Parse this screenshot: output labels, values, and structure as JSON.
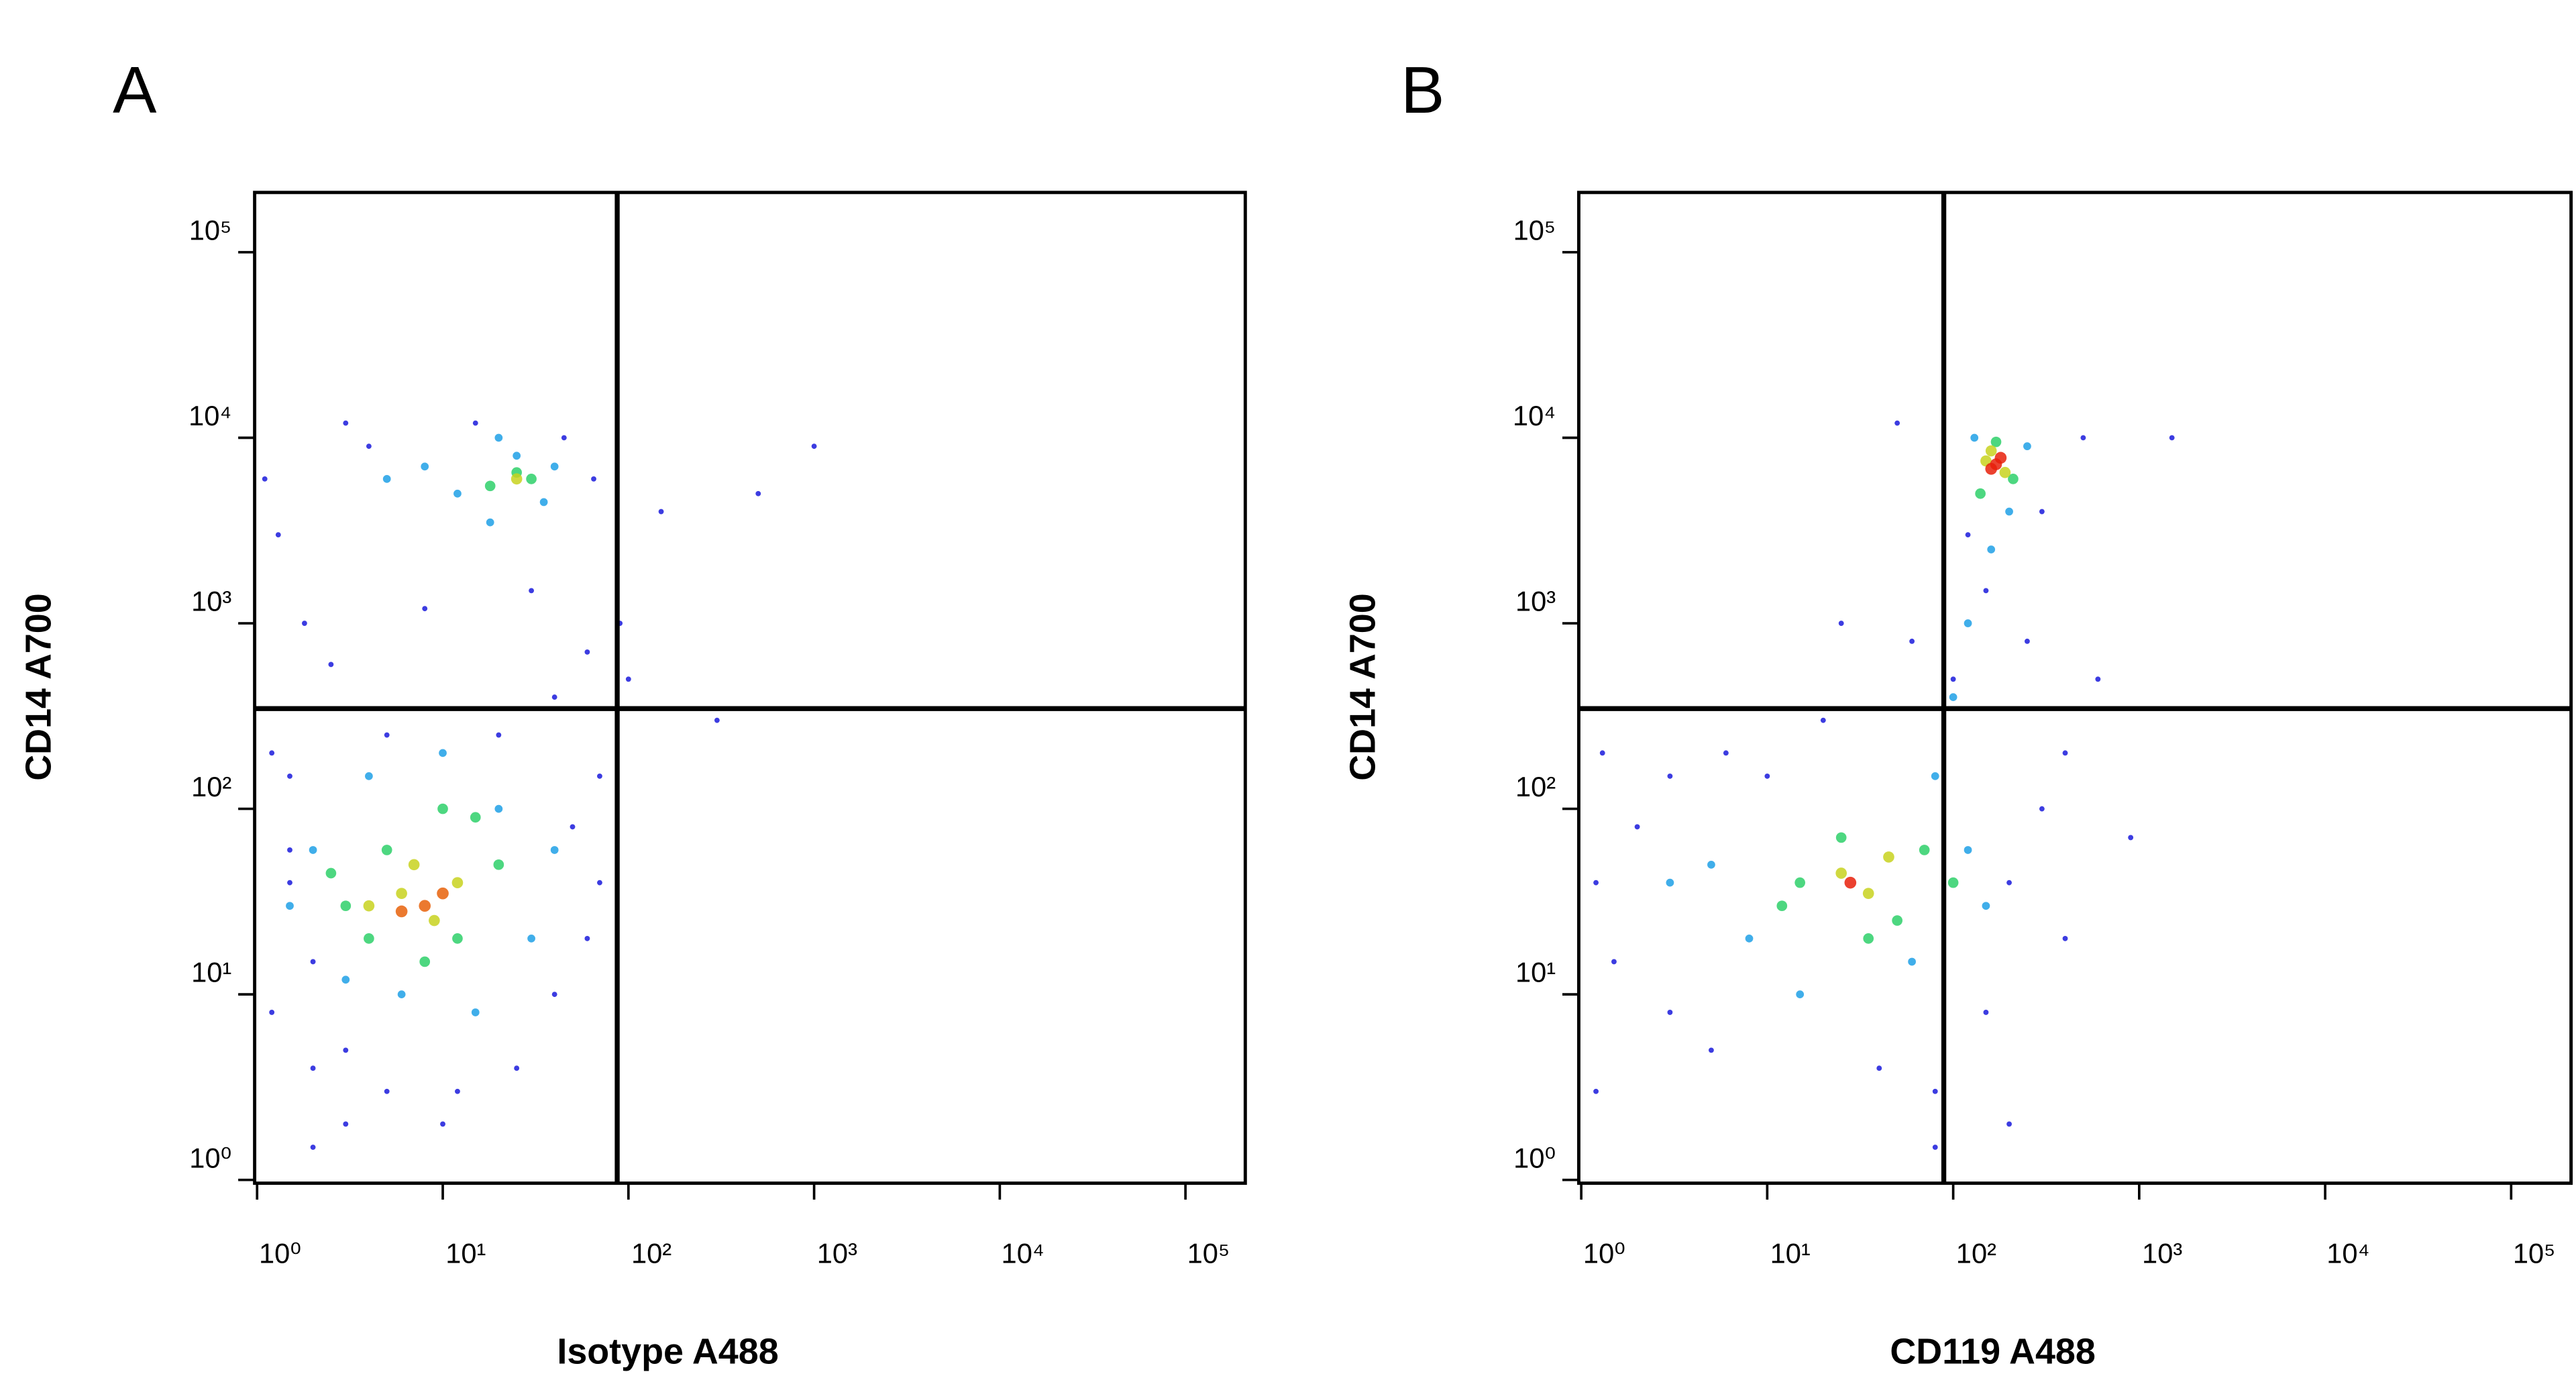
{
  "chart_data": [
    {
      "type": "scatter",
      "panel": "A",
      "x_label": "Isotype A488",
      "y_label": "CD14 A700",
      "xscale": "log",
      "yscale": "log",
      "xlim": [
        0.97,
        210000
      ],
      "ylim": [
        0.96,
        210000
      ],
      "xticks": [
        {
          "value": 1,
          "label": "10⁰"
        },
        {
          "value": 10,
          "label": "10¹"
        },
        {
          "value": 100,
          "label": "10²"
        },
        {
          "value": 1000,
          "label": "10³"
        },
        {
          "value": 10000,
          "label": "10⁴"
        },
        {
          "value": 100000,
          "label": "10⁵"
        }
      ],
      "yticks": [
        {
          "value": 1,
          "label": "10⁰"
        },
        {
          "value": 10,
          "label": "10¹"
        },
        {
          "value": 100,
          "label": "10²"
        },
        {
          "value": 1000,
          "label": "10³"
        },
        {
          "value": 10000,
          "label": "10⁴"
        },
        {
          "value": 100000,
          "label": "10⁵"
        }
      ],
      "gates": {
        "x": 87,
        "y": 347
      },
      "series": [
        {
          "color": "#1a1adc",
          "x": [
            1.2,
            2,
            1.5,
            3,
            50,
            70,
            60,
            1.1,
            1.3,
            4,
            2.5,
            40,
            30,
            1.8,
            3,
            5,
            20,
            60,
            100,
            150,
            300,
            500,
            1000,
            1.5,
            2,
            5,
            12,
            40,
            70,
            90,
            1.2,
            3,
            10,
            25,
            2,
            1.5,
            65,
            45,
            15,
            8
          ],
          "y": [
            8,
            4,
            150,
            2,
            80,
            150,
            20,
            6000,
            3000,
            9000,
            600,
            400,
            1500,
            1000,
            12000,
            250,
            250,
            700,
            500,
            4000,
            300,
            5000,
            9000,
            40,
            15,
            3,
            3,
            10,
            40,
            1000,
            200,
            5,
            2,
            4,
            1.5,
            60,
            6000,
            10000,
            12000,
            1200
          ]
        },
        {
          "color": "#1ea0e6",
          "x": [
            2,
            3,
            20,
            30,
            4,
            15,
            1.5,
            40,
            10,
            6,
            12,
            25,
            35,
            18,
            8,
            40,
            5,
            20
          ],
          "y": [
            60,
            12,
            100,
            20,
            150,
            8,
            30,
            60,
            200,
            10,
            5000,
            8000,
            4500,
            3500,
            7000,
            7000,
            6000,
            10000
          ]
        },
        {
          "color": "#2ed06a",
          "x": [
            3,
            5,
            12,
            20,
            8,
            4,
            15,
            10,
            25,
            18,
            30,
            2.5
          ],
          "y": [
            30,
            60,
            20,
            50,
            15,
            20,
            90,
            100,
            6500,
            5500,
            6000,
            45
          ]
        },
        {
          "color": "#c8d21e",
          "x": [
            6,
            9,
            12,
            7,
            25,
            4
          ],
          "y": [
            35,
            25,
            40,
            50,
            6000,
            30
          ]
        },
        {
          "color": "#e8620a",
          "x": [
            8,
            10,
            6
          ],
          "y": [
            30,
            35,
            28
          ]
        }
      ]
    },
    {
      "type": "scatter",
      "panel": "B",
      "x_label": "CD119 A488",
      "y_label": "CD14 A700",
      "xscale": "log",
      "yscale": "log",
      "xlim": [
        0.97,
        210000
      ],
      "ylim": [
        0.96,
        210000
      ],
      "xticks": [
        {
          "value": 1,
          "label": "10⁰"
        },
        {
          "value": 10,
          "label": "10¹"
        },
        {
          "value": 100,
          "label": "10²"
        },
        {
          "value": 1000,
          "label": "10³"
        },
        {
          "value": 10000,
          "label": "10⁴"
        },
        {
          "value": 100000,
          "label": "10⁵"
        }
      ],
      "yticks": [
        {
          "value": 1,
          "label": "10⁰"
        },
        {
          "value": 10,
          "label": "10¹"
        },
        {
          "value": 100,
          "label": "10²"
        },
        {
          "value": 1000,
          "label": "10³"
        },
        {
          "value": 10000,
          "label": "10⁴"
        },
        {
          "value": 100000,
          "label": "10⁵"
        }
      ],
      "gates": {
        "x": 89,
        "y": 347
      },
      "series": [
        {
          "color": "#1a1adc",
          "x": [
            1.2,
            1.5,
            2,
            3,
            1.3,
            5,
            10,
            200,
            300,
            400,
            150,
            80,
            40,
            100,
            150,
            250,
            60,
            300,
            120,
            600,
            1500,
            50,
            3,
            6,
            20,
            400,
            200,
            80,
            1.2,
            900,
            500,
            25
          ],
          "y": [
            40,
            15,
            80,
            8,
            200,
            5,
            150,
            40,
            100,
            20,
            8,
            3,
            4,
            500,
            1500,
            800,
            800,
            4000,
            3000,
            500,
            10000,
            12000,
            150,
            200,
            300,
            200,
            2,
            1.5,
            3,
            70,
            10000,
            1000
          ]
        },
        {
          "color": "#1ea0e6",
          "x": [
            5,
            8,
            15,
            60,
            120,
            80,
            150,
            100,
            120,
            160,
            200,
            130,
            250,
            3
          ],
          "y": [
            50,
            20,
            10,
            15,
            60,
            150,
            30,
            400,
            1000,
            2500,
            4000,
            10000,
            9000,
            40
          ]
        },
        {
          "color": "#2ed06a",
          "x": [
            15,
            25,
            50,
            70,
            35,
            100,
            140,
            210,
            170,
            12
          ],
          "y": [
            40,
            70,
            25,
            60,
            20,
            40,
            5000,
            6000,
            9500,
            30
          ]
        },
        {
          "color": "#c8d21e",
          "x": [
            25,
            35,
            45,
            150,
            190,
            160
          ],
          "y": [
            45,
            35,
            55,
            7500,
            6500,
            8500
          ]
        },
        {
          "color": "#e8200a",
          "x": [
            28,
            170,
            180,
            160
          ],
          "y": [
            40,
            7200,
            7800,
            6800
          ]
        }
      ]
    }
  ]
}
